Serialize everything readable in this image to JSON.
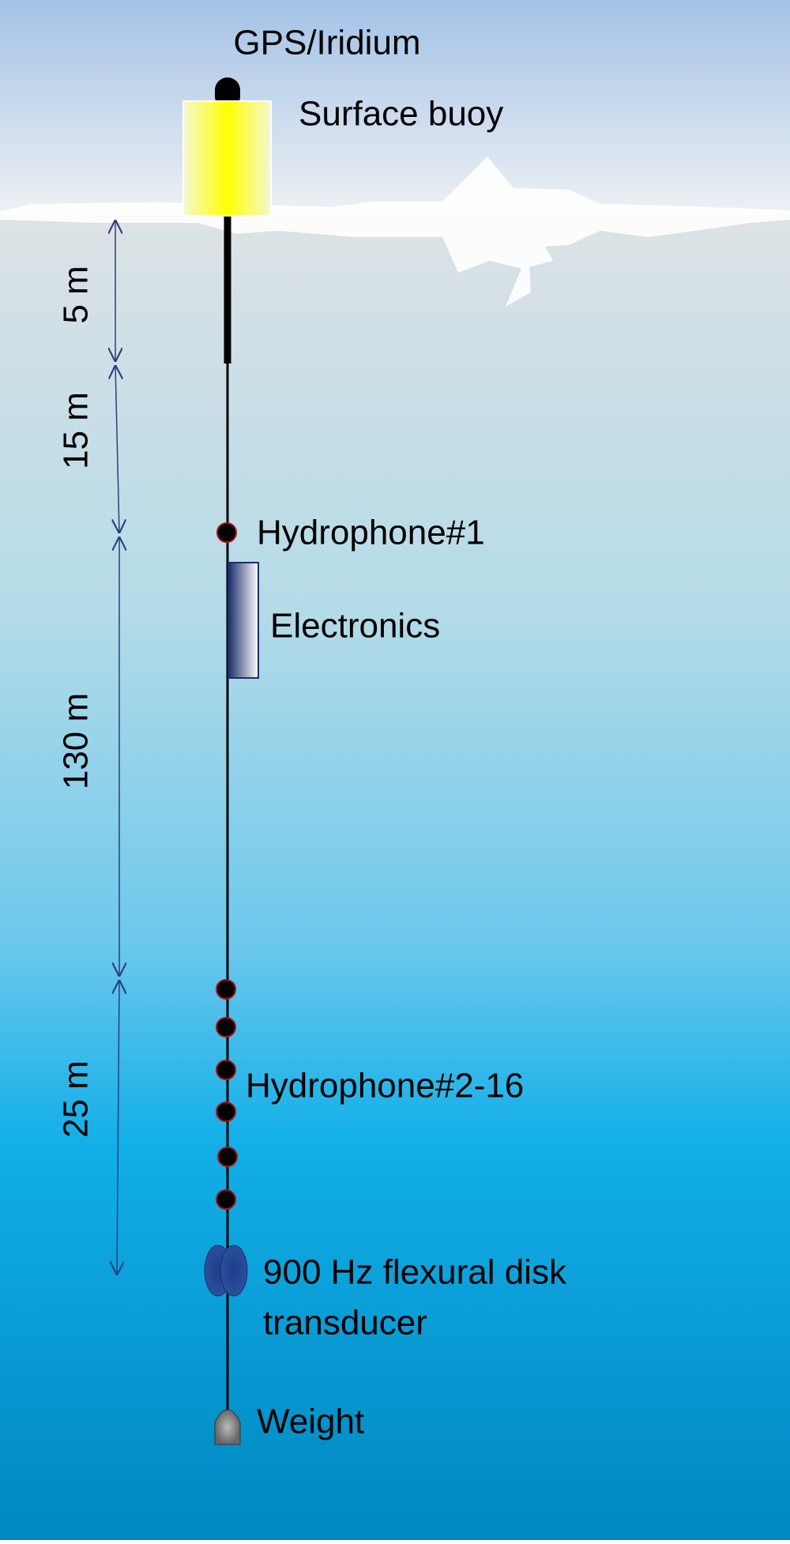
{
  "labels": {
    "antenna": "GPS/Iridium",
    "buoy": "Surface buoy",
    "hydrophone_1": "Hydrophone#1",
    "electronics": "Electronics",
    "hydrophones": "Hydrophone#2-16",
    "transducer_line1": "900 Hz flexural disk",
    "transducer_line2": "transducer",
    "weight": "Weight"
  },
  "dimensions": [
    "5 m",
    "15 m",
    "130 m",
    "25 m"
  ]
}
